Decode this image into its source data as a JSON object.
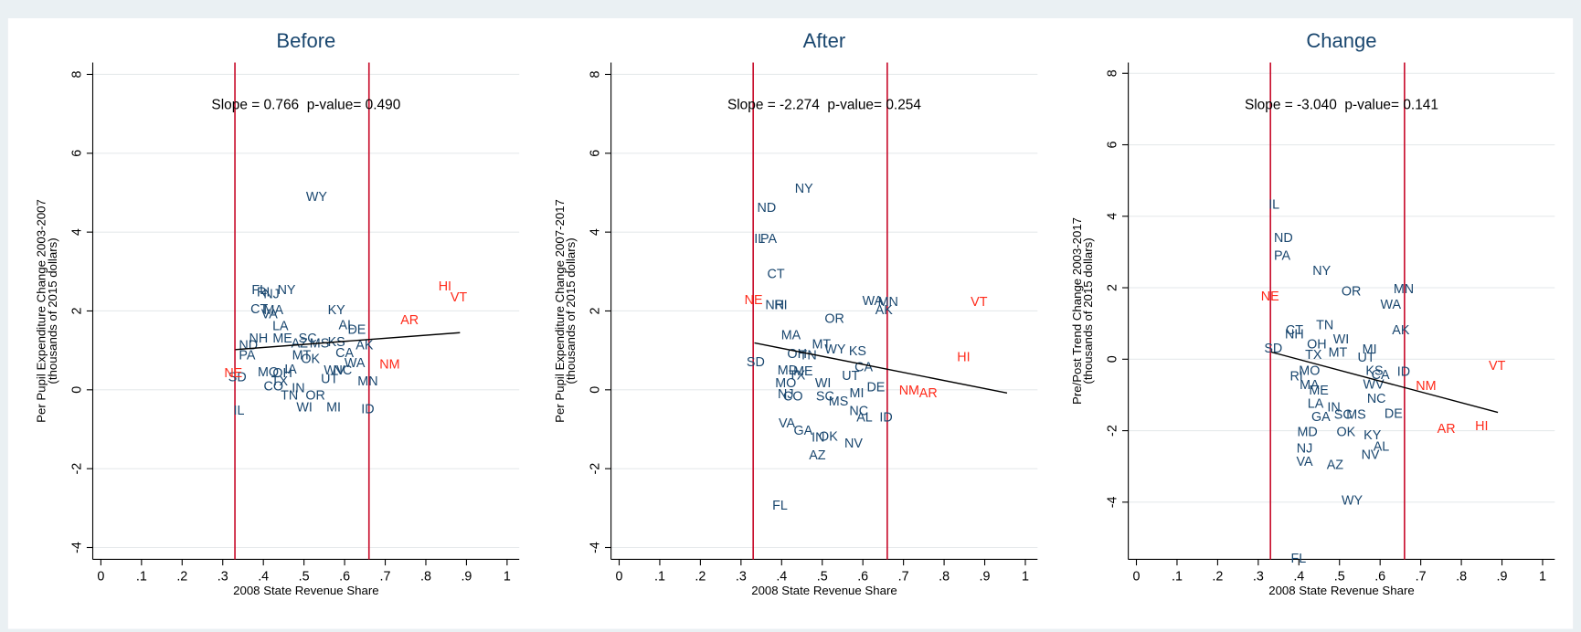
{
  "chart_data": [
    {
      "type": "scatter",
      "title": "Before",
      "annotation": "Slope = 0.766  p-value= 0.490",
      "xlabel": "2008 State Revenue Share",
      "ylabel": [
        "Per Pupil Expenditure Change 2003-2007",
        "(thousands of 2015 dollars)"
      ],
      "xlim": [
        -0.02,
        1.03
      ],
      "ylim": [
        -4.3,
        8.3
      ],
      "xticks": [
        0,
        {
          "value": 0.1,
          "label": ".1"
        },
        {
          "value": 0.2,
          "label": ".2"
        },
        {
          "value": 0.3,
          "label": ".3"
        },
        {
          "value": 0.4,
          "label": ".4"
        },
        {
          "value": 0.5,
          "label": ".5"
        },
        {
          "value": 0.6,
          "label": ".6"
        },
        {
          "value": 0.7,
          "label": ".7"
        },
        {
          "value": 0.8,
          "label": ".8"
        },
        {
          "value": 0.9,
          "label": ".9"
        },
        1
      ],
      "yticks": [
        -4,
        -2,
        0,
        2,
        4,
        6,
        8
      ],
      "grid": true,
      "vlines": [
        0.33,
        0.66
      ],
      "vline_color": "#c8102e",
      "fit": {
        "color": "#000000",
        "x": [
          0.331,
          0.884
        ],
        "y": [
          1.02,
          1.45
        ]
      },
      "series": [
        {
          "color": "#1a476f",
          "labels": [
            "WY",
            "SD",
            "IL",
            "FL",
            "RI",
            "NJ",
            "NY",
            "CT",
            "MA",
            "VA",
            "LA",
            "KY",
            "AL",
            "DE",
            "NH",
            "ME",
            "SC",
            "ND",
            "AZ",
            "MS",
            "KS",
            "AK",
            "PA",
            "MT",
            "CA",
            "OK",
            "WA",
            "IA",
            "MO",
            "OH",
            "TX",
            "WV",
            "NC",
            "UT",
            "MN",
            "CO",
            "IN",
            "TN",
            "OR",
            "WI",
            "MI",
            "ID"
          ],
          "x": [
            0.531,
            0.336,
            0.34,
            0.39,
            0.4,
            0.42,
            0.457,
            0.39,
            0.425,
            0.415,
            0.442,
            0.58,
            0.605,
            0.63,
            0.388,
            0.447,
            0.509,
            0.363,
            0.489,
            0.538,
            0.58,
            0.649,
            0.36,
            0.494,
            0.6,
            0.516,
            0.625,
            0.467,
            0.412,
            0.447,
            0.44,
            0.575,
            0.595,
            0.563,
            0.657,
            0.425,
            0.486,
            0.464,
            0.528,
            0.501,
            0.573,
            0.657
          ],
          "y": [
            4.91,
            0.33,
            -0.51,
            2.54,
            2.49,
            2.44,
            2.54,
            2.06,
            2.03,
            1.93,
            1.63,
            2.03,
            1.65,
            1.53,
            1.32,
            1.32,
            1.32,
            1.14,
            1.19,
            1.19,
            1.22,
            1.14,
            0.89,
            0.89,
            0.94,
            0.79,
            0.69,
            0.53,
            0.46,
            0.43,
            0.23,
            0.51,
            0.51,
            0.28,
            0.23,
            0.1,
            0.05,
            -0.13,
            -0.13,
            -0.43,
            -0.43,
            -0.48
          ]
        },
        {
          "color": "#ff2a1a",
          "labels": [
            "HI",
            "VT",
            "AR",
            "NM",
            "NE"
          ],
          "x": [
            0.847,
            0.881,
            0.76,
            0.711,
            0.326
          ],
          "y": [
            2.64,
            2.36,
            1.78,
            0.66,
            0.43
          ]
        }
      ]
    },
    {
      "type": "scatter",
      "title": "After",
      "annotation": "Slope = -2.274  p-value= 0.254",
      "xlabel": "2008 State Revenue Share",
      "ylabel": [
        "Per Pupil Expenditure Change 2007-2017",
        "(thousands of 2015 dollars)"
      ],
      "xlim": [
        -0.02,
        1.03
      ],
      "ylim": [
        -4.3,
        8.3
      ],
      "xticks": [
        0,
        {
          "value": 0.1,
          "label": ".1"
        },
        {
          "value": 0.2,
          "label": ".2"
        },
        {
          "value": 0.3,
          "label": ".3"
        },
        {
          "value": 0.4,
          "label": ".4"
        },
        {
          "value": 0.5,
          "label": ".5"
        },
        {
          "value": 0.6,
          "label": ".6"
        },
        {
          "value": 0.7,
          "label": ".7"
        },
        {
          "value": 0.8,
          "label": ".8"
        },
        {
          "value": 0.9,
          "label": ".9"
        },
        1
      ],
      "yticks": [
        -4,
        -2,
        0,
        2,
        4,
        6,
        8
      ],
      "grid": true,
      "vlines": [
        0.33,
        0.66
      ],
      "vline_color": "#c8102e",
      "fit": {
        "color": "#000000",
        "x": [
          0.333,
          0.955
        ],
        "y": [
          1.19,
          -0.08
        ]
      },
      "series": [
        {
          "color": "#1a476f",
          "labels": [
            "NY",
            "ND",
            "IL",
            "PA",
            "CT",
            "NH",
            "RI",
            "WA",
            "MN",
            "AK",
            "OR",
            "MA",
            "MT",
            "WY",
            "KS",
            "OH",
            "TN",
            "SD",
            "CA",
            "ME",
            "MD",
            "TX",
            "UT",
            "MO",
            "WI",
            "DE",
            "NJ",
            "CO",
            "SC",
            "MS",
            "MI",
            "NC",
            "ID",
            "AL",
            "VA",
            "GA",
            "IN",
            "OK",
            "NV",
            "AZ",
            "FL"
          ],
          "x": [
            0.455,
            0.363,
            0.346,
            0.368,
            0.386,
            0.383,
            0.398,
            0.624,
            0.662,
            0.652,
            0.53,
            0.423,
            0.498,
            0.532,
            0.587,
            0.438,
            0.465,
            0.336,
            0.602,
            0.453,
            0.415,
            0.438,
            0.57,
            0.41,
            0.502,
            0.632,
            0.41,
            0.428,
            0.507,
            0.54,
            0.585,
            0.59,
            0.657,
            0.604,
            0.413,
            0.453,
            0.49,
            0.515,
            0.577,
            0.488,
            0.396
          ],
          "y": [
            5.11,
            4.63,
            3.84,
            3.84,
            2.95,
            2.16,
            2.16,
            2.26,
            2.24,
            2.03,
            1.81,
            1.4,
            1.17,
            1.04,
            0.99,
            0.92,
            0.89,
            0.71,
            0.58,
            0.48,
            0.51,
            0.38,
            0.36,
            0.18,
            0.18,
            0.08,
            -0.1,
            -0.15,
            -0.15,
            -0.28,
            -0.08,
            -0.53,
            -0.69,
            -0.69,
            -0.84,
            -1.02,
            -1.2,
            -1.17,
            -1.35,
            -1.65,
            -2.92
          ]
        },
        {
          "color": "#ff2a1a",
          "labels": [
            "NE",
            "VT",
            "HI",
            "NM",
            "AR"
          ],
          "x": [
            0.331,
            0.886,
            0.848,
            0.714,
            0.761
          ],
          "y": [
            2.29,
            2.24,
            0.84,
            0,
            -0.08
          ]
        }
      ]
    },
    {
      "type": "scatter",
      "title": "Change",
      "annotation": "Slope = -3.040  p-value= 0.141",
      "xlabel": "2008 State Revenue Share",
      "ylabel": [
        "Pre/Post Trend Change 2003-2017",
        "(thousands of 2015 dollars)"
      ],
      "xlim": [
        -0.02,
        1.03
      ],
      "ylim": [
        -5.6,
        8.3
      ],
      "xticks": [
        0,
        {
          "value": 0.1,
          "label": ".1"
        },
        {
          "value": 0.2,
          "label": ".2"
        },
        {
          "value": 0.3,
          "label": ".3"
        },
        {
          "value": 0.4,
          "label": ".4"
        },
        {
          "value": 0.5,
          "label": ".5"
        },
        {
          "value": 0.6,
          "label": ".6"
        },
        {
          "value": 0.7,
          "label": ".7"
        },
        {
          "value": 0.8,
          "label": ".8"
        },
        {
          "value": 0.9,
          "label": ".9"
        },
        1
      ],
      "yticks": [
        -4,
        -2,
        0,
        2,
        4,
        6,
        8
      ],
      "grid": true,
      "vlines": [
        0.33,
        0.66
      ],
      "vline_color": "#c8102e",
      "fit": {
        "color": "#000000",
        "x": [
          0.332,
          0.89
        ],
        "y": [
          0.2,
          -1.49
        ]
      },
      "series": [
        {
          "color": "#1a476f",
          "labels": [
            "IL",
            "ND",
            "PA",
            "NY",
            "OR",
            "MN",
            "WA",
            "TN",
            "AK",
            "CT",
            "NH",
            "WI",
            "OH",
            "MI",
            "SD",
            "TX",
            "MT",
            "UT",
            "KS",
            "CA",
            "ID",
            "MO",
            "RI",
            "MA",
            "ME",
            "WV",
            "NC",
            "LA",
            "IN",
            "DE",
            "GA",
            "SC",
            "MS",
            "MD",
            "OK",
            "KY",
            "AL",
            "NJ",
            "NV",
            "VA",
            "AZ",
            "WY",
            "FL"
          ],
          "x": [
            0.339,
            0.362,
            0.359,
            0.456,
            0.529,
            0.658,
            0.626,
            0.464,
            0.651,
            0.389,
            0.389,
            0.504,
            0.444,
            0.574,
            0.337,
            0.436,
            0.496,
            0.566,
            0.586,
            0.601,
            0.658,
            0.426,
            0.394,
            0.426,
            0.449,
            0.584,
            0.591,
            0.441,
            0.486,
            0.633,
            0.454,
            0.509,
            0.541,
            0.421,
            0.516,
            0.581,
            0.603,
            0.414,
            0.576,
            0.414,
            0.489,
            0.531,
            0.399
          ],
          "y": [
            4.34,
            3.4,
            2.91,
            2.49,
            1.91,
            1.97,
            1.54,
            0.97,
            0.83,
            0.83,
            0.71,
            0.57,
            0.43,
            0.29,
            0.31,
            0.14,
            0.2,
            0.06,
            -0.31,
            -0.43,
            -0.34,
            -0.31,
            -0.46,
            -0.71,
            -0.86,
            -0.69,
            -1.09,
            -1.23,
            -1.34,
            -1.51,
            -1.6,
            -1.54,
            -1.54,
            -2.03,
            -2.03,
            -2.11,
            -2.43,
            -2.49,
            -2.66,
            -2.86,
            -2.94,
            -3.94,
            -5.57
          ]
        },
        {
          "color": "#ff2a1a",
          "labels": [
            "NE",
            "VT",
            "NM",
            "AR",
            "HI"
          ],
          "x": [
            0.329,
            0.888,
            0.713,
            0.763,
            0.85
          ],
          "y": [
            1.77,
            -0.17,
            -0.74,
            -1.94,
            -1.86
          ]
        }
      ]
    }
  ]
}
